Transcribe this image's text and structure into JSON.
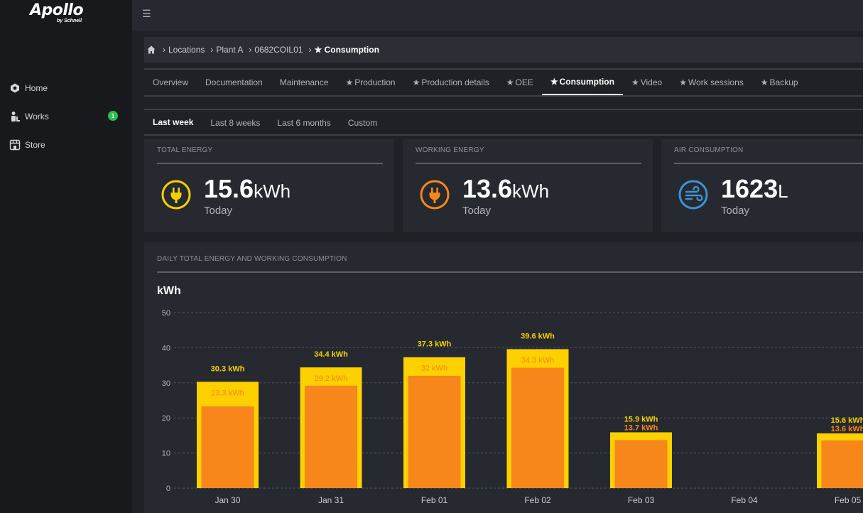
{
  "app": {
    "logo_brand": "Apollo",
    "logo_sub": "by Schnell"
  },
  "sidebar": {
    "items": [
      {
        "label": "Home",
        "icon": "hexagon-icon"
      },
      {
        "label": "Works",
        "icon": "worker-icon",
        "badge": "1"
      },
      {
        "label": "Store",
        "icon": "store-icon"
      }
    ]
  },
  "breadcrumb": {
    "items": [
      "Locations",
      "Plant A",
      "0682COIL01"
    ],
    "current": "Consumption"
  },
  "tabs": [
    {
      "label": "Overview",
      "star": false
    },
    {
      "label": "Documentation",
      "star": false
    },
    {
      "label": "Maintenance",
      "star": false
    },
    {
      "label": "Production",
      "star": true
    },
    {
      "label": "Production details",
      "star": true
    },
    {
      "label": "OEE",
      "star": true
    },
    {
      "label": "Consumption",
      "star": true,
      "active": true
    },
    {
      "label": "Video",
      "star": true
    },
    {
      "label": "Work sessions",
      "star": true
    },
    {
      "label": "Backup",
      "star": true
    }
  ],
  "subtabs": [
    {
      "label": "Last week",
      "active": true
    },
    {
      "label": "Last 8 weeks"
    },
    {
      "label": "Last 6 months"
    },
    {
      "label": "Custom"
    }
  ],
  "cards": [
    {
      "title": "TOTAL ENERGY",
      "value": "15.6",
      "unit": "kWh",
      "period": "Today",
      "color": "#f5d000",
      "icon": "plug-icon"
    },
    {
      "title": "WORKING ENERGY",
      "value": "13.6",
      "unit": "kWh",
      "period": "Today",
      "color": "#f7871b",
      "icon": "plug-icon"
    },
    {
      "title": "AIR CONSUMPTION",
      "value": "1623",
      "unit": "L",
      "period": "Today",
      "color": "#3d93d0",
      "icon": "wind-icon"
    }
  ],
  "chart_panel": {
    "title": "DAILY TOTAL ENERGY AND WORKING CONSUMPTION",
    "unit_label": "kWh"
  },
  "chart_data": {
    "type": "bar",
    "categories": [
      "Jan 30",
      "Jan 31",
      "Feb 01",
      "Feb 02",
      "Feb 03",
      "Feb 04",
      "Feb 05"
    ],
    "series": [
      {
        "values": [
          30.3,
          34.4,
          37.3,
          39.6,
          15.9,
          null,
          15.6
        ],
        "labels": [
          "30.3 kWh",
          "34.4 kWh",
          "37.3 kWh",
          "39.6 kWh",
          "15.9 kWh",
          "",
          "15.6 kWh"
        ],
        "color": "#fdd000"
      },
      {
        "values": [
          23.3,
          29.2,
          32,
          34.3,
          13.7,
          null,
          13.6
        ],
        "labels": [
          "23.3 kWh",
          "29.2 kWh",
          "32 kWh",
          "34.3 kWh",
          "13.7 kWh",
          "",
          "13.6 kWh"
        ],
        "color": "#f7871b"
      }
    ],
    "ylabel": "kWh",
    "ylim": [
      0,
      50
    ],
    "yticks": [
      "0",
      "10",
      "20",
      "30",
      "40",
      "50"
    ],
    "grid": true
  }
}
